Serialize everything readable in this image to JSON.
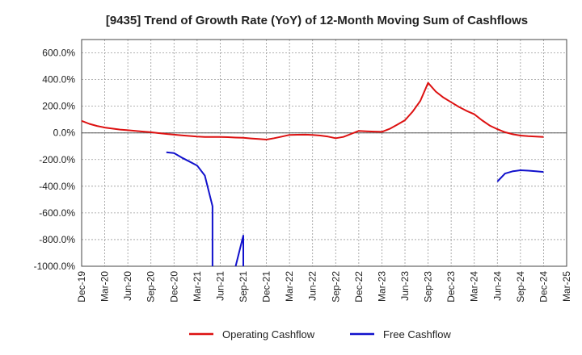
{
  "chart_data": {
    "type": "line",
    "title": "[9435]  Trend of Growth Rate (YoY) of 12-Month Moving Sum of Cashflows",
    "xlabel": "",
    "ylabel": "",
    "ylim": [
      -1000,
      700
    ],
    "grid": true,
    "legend_placement": "bottom",
    "x_tick_labels": [
      "Dec-19",
      "Mar-20",
      "Jun-20",
      "Sep-20",
      "Dec-20",
      "Mar-21",
      "Jun-21",
      "Sep-21",
      "Dec-21",
      "Mar-22",
      "Jun-22",
      "Sep-22",
      "Dec-22",
      "Mar-23",
      "Jun-23",
      "Sep-23",
      "Dec-23",
      "Mar-24",
      "Jun-24",
      "Sep-24",
      "Dec-24",
      "Mar-25"
    ],
    "y_tick_values": [
      600,
      400,
      200,
      0,
      -200,
      -400,
      -600,
      -800,
      -1000
    ],
    "y_tick_labels": [
      "600.0%",
      "400.0%",
      "200.0%",
      "0.0%",
      "-200.0%",
      "-400.0%",
      "-600.0%",
      "-800.0%",
      "-1000.0%"
    ],
    "series": [
      {
        "name": "Operating Cashflow",
        "color": "#dd1111",
        "points": [
          [
            "Dec-19",
            90
          ],
          [
            "Jan-20",
            68
          ],
          [
            "Feb-20",
            52
          ],
          [
            "Mar-20",
            40
          ],
          [
            "Apr-20",
            32
          ],
          [
            "May-20",
            25
          ],
          [
            "Jun-20",
            20
          ],
          [
            "Jul-20",
            15
          ],
          [
            "Aug-20",
            10
          ],
          [
            "Sep-20",
            5
          ],
          [
            "Oct-20",
            -2
          ],
          [
            "Nov-20",
            -8
          ],
          [
            "Dec-20",
            -13
          ],
          [
            "Jan-21",
            -18
          ],
          [
            "Feb-21",
            -23
          ],
          [
            "Mar-21",
            -28
          ],
          [
            "Apr-21",
            -30
          ],
          [
            "May-21",
            -30
          ],
          [
            "Jun-21",
            -30
          ],
          [
            "Jul-21",
            -32
          ],
          [
            "Aug-21",
            -35
          ],
          [
            "Sep-21",
            -37
          ],
          [
            "Oct-21",
            -42
          ],
          [
            "Nov-21",
            -46
          ],
          [
            "Dec-21",
            -50
          ],
          [
            "Jan-22",
            -40
          ],
          [
            "Feb-22",
            -28
          ],
          [
            "Mar-22",
            -15
          ],
          [
            "Apr-22",
            -14
          ],
          [
            "May-22",
            -13
          ],
          [
            "Jun-22",
            -15
          ],
          [
            "Jul-22",
            -20
          ],
          [
            "Aug-22",
            -28
          ],
          [
            "Sep-22",
            -40
          ],
          [
            "Oct-22",
            -30
          ],
          [
            "Nov-22",
            -8
          ],
          [
            "Dec-22",
            15
          ],
          [
            "Jan-23",
            12
          ],
          [
            "Feb-23",
            10
          ],
          [
            "Mar-23",
            8
          ],
          [
            "Apr-23",
            30
          ],
          [
            "May-23",
            62
          ],
          [
            "Jun-23",
            95
          ],
          [
            "Jul-23",
            160
          ],
          [
            "Aug-23",
            240
          ],
          [
            "Sep-23",
            375
          ],
          [
            "Oct-23",
            310
          ],
          [
            "Nov-23",
            265
          ],
          [
            "Dec-23",
            230
          ],
          [
            "Jan-24",
            195
          ],
          [
            "Feb-24",
            165
          ],
          [
            "Mar-24",
            140
          ],
          [
            "Apr-24",
            95
          ],
          [
            "May-24",
            55
          ],
          [
            "Jun-24",
            28
          ],
          [
            "Jul-24",
            5
          ],
          [
            "Aug-24",
            -10
          ],
          [
            "Sep-24",
            -20
          ],
          [
            "Oct-24",
            -25
          ],
          [
            "Nov-24",
            -28
          ],
          [
            "Dec-24",
            -30
          ]
        ]
      },
      {
        "name": "Free Cashflow",
        "color": "#1111cc",
        "points": [
          [
            "Nov-20",
            -145
          ],
          [
            "Dec-20",
            -152
          ],
          [
            "Jan-21",
            -185
          ],
          [
            "Feb-21",
            -215
          ],
          [
            "Mar-21",
            -245
          ],
          [
            "Apr-21",
            -320
          ],
          [
            "May-21",
            -550
          ],
          [
            "May-21",
            -1000
          ],
          null,
          [
            "Aug-21",
            -1000
          ],
          [
            "Sep-21",
            -770
          ],
          [
            "Sep-21",
            -1000
          ],
          null,
          [
            "Jun-24",
            -365
          ],
          [
            "Jul-24",
            -305
          ],
          [
            "Aug-24",
            -288
          ],
          [
            "Sep-24",
            -280
          ],
          [
            "Oct-24",
            -283
          ],
          [
            "Nov-24",
            -288
          ],
          [
            "Dec-24",
            -293
          ]
        ]
      }
    ]
  }
}
